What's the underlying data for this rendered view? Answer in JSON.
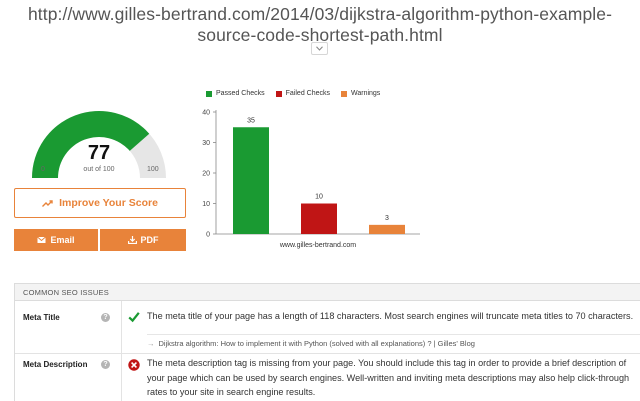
{
  "page": {
    "url_line1": "http://www.gilles-bertrand.com/2014/03/dijkstra-algorithm-python-example-",
    "url_line2": "source-code-shortest-path.html",
    "expand_icon": "chevron-down-icon"
  },
  "score": {
    "value": "77",
    "out_of": "out of 100",
    "min": "0",
    "max": "100",
    "fraction": 0.77,
    "color_fill": "#1a9a32",
    "color_track": "#e6e6e6"
  },
  "actions": {
    "improve_label": "Improve Your Score",
    "improve_icon": "trending-up-icon",
    "email_label": "Email",
    "email_icon": "envelope-icon",
    "pdf_label": "PDF",
    "pdf_icon": "download-icon",
    "accent": "#e8833a"
  },
  "chart_data": {
    "type": "bar",
    "categories": [
      "Passed Checks",
      "Failed Checks",
      "Warnings"
    ],
    "values": [
      35,
      10,
      3
    ],
    "colors": [
      "#1a9a32",
      "#c01515",
      "#e8833a"
    ],
    "xlabel": "www.gilles-bertrand.com",
    "ylabel": "",
    "ylim": [
      0,
      40
    ],
    "yticks": [
      0,
      10,
      20,
      30,
      40
    ],
    "grid": false,
    "legend": "top"
  },
  "issues": {
    "header": "COMMON SEO ISSUES",
    "rows": [
      {
        "title": "Meta Title",
        "status": "pass",
        "status_icon": "check-icon",
        "help_icon": "question-icon",
        "text": "The meta title of your page has a length of 118 characters. Most search engines will truncate meta titles to 70 characters.",
        "sub_icon": "arrow-right-icon",
        "sub_text": "Dijkstra algorithm: How to implement it with Python (solved with all explanations) ? | Gilles' Blog"
      },
      {
        "title": "Meta Description",
        "status": "fail",
        "status_icon": "error-x-icon",
        "help_icon": "question-icon",
        "text_line1": "The meta description tag is missing from your page. You should include this tag in order to provide a brief description of",
        "text_line2": "your page which can be used by search engines. Well-written and inviting meta descriptions may also help click-through",
        "text_line3": "rates to your site in search engine results."
      }
    ]
  }
}
